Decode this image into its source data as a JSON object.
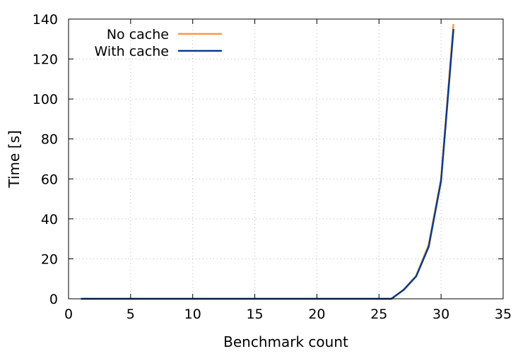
{
  "chart_data": {
    "type": "line",
    "xlabel": "Benchmark count",
    "ylabel": "Time [s]",
    "xlim": [
      0,
      35
    ],
    "ylim": [
      0,
      140
    ],
    "xticks": [
      "0",
      "5",
      "10",
      "15",
      "20",
      "25",
      "30",
      "35"
    ],
    "yticks": [
      "0",
      "20",
      "40",
      "60",
      "80",
      "100",
      "120",
      "140"
    ],
    "grid": true,
    "legend_position": "top-left",
    "series": [
      {
        "name": "No cache",
        "color": "#ff9933",
        "x": [
          1,
          2,
          3,
          4,
          5,
          6,
          7,
          8,
          9,
          10,
          11,
          12,
          13,
          14,
          15,
          16,
          17,
          18,
          19,
          20,
          21,
          22,
          23,
          24,
          25,
          26,
          27,
          28,
          29,
          30,
          31
        ],
        "y": [
          0,
          0,
          0,
          0,
          0,
          0,
          0,
          0,
          0,
          0,
          0,
          0,
          0,
          0,
          0,
          0,
          0,
          0,
          0,
          0,
          0,
          0,
          0,
          0,
          0,
          0,
          4.7,
          11.5,
          27,
          60,
          137.5
        ]
      },
      {
        "name": "With cache",
        "color": "#0b3a8c",
        "x": [
          1,
          2,
          3,
          4,
          5,
          6,
          7,
          8,
          9,
          10,
          11,
          12,
          13,
          14,
          15,
          16,
          17,
          18,
          19,
          20,
          21,
          22,
          23,
          24,
          25,
          26,
          27,
          28,
          29,
          30,
          31
        ],
        "y": [
          0,
          0,
          0,
          0,
          0,
          0,
          0,
          0,
          0,
          0,
          0,
          0,
          0,
          0,
          0,
          0,
          0,
          0,
          0,
          0,
          0,
          0,
          0,
          0,
          0,
          0,
          4.5,
          11.3,
          26,
          59,
          135
        ]
      }
    ]
  }
}
